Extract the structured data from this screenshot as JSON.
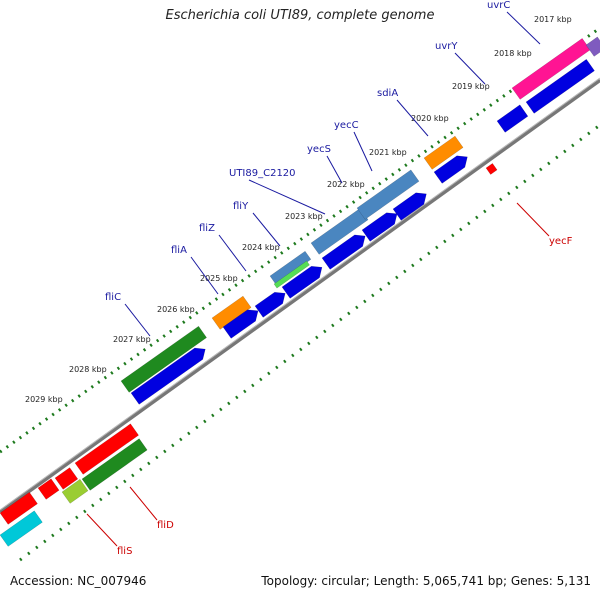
{
  "title": "Escherichia coli UTI89, complete genome",
  "footer": {
    "accession": "Accession: NC_007946",
    "summary": "Topology: circular; Length: 5,065,741 bp; Genes: 5,131"
  },
  "ticks": [
    "2017 kbp",
    "2018 kbp",
    "2019 kbp",
    "2020 kbp",
    "2021 kbp",
    "2022 kbp",
    "2023 kbp",
    "2024 kbp",
    "2025 kbp",
    "2026 kbp",
    "2027 kbp",
    "2028 kbp",
    "2029 kbp"
  ],
  "genes_plus": [
    "uvrC",
    "uvrY",
    "sdiA",
    "yecC",
    "yecS",
    "UTI89_C2120",
    "fliY",
    "fliZ",
    "fliA",
    "fliC"
  ],
  "genes_minus": [
    "yecF",
    "fliD",
    "fliS"
  ],
  "colors": {
    "gene_label_plus": "#1a1aa0",
    "gene_label_minus": "#cc0000",
    "cds": "#0000e0",
    "flagellin": "#1f8a1f",
    "transport": "#4a86c0",
    "regulator": "#ff8c00",
    "uvr": "#ff1493",
    "red": "#ff0000",
    "cyan": "#00c8d8",
    "backbone": "#888888"
  }
}
